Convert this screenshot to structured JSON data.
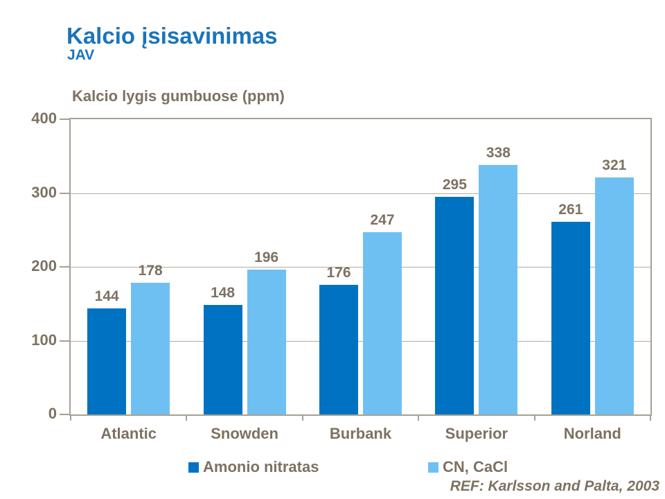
{
  "header": {
    "title": "Kalcio įsisavinimas",
    "subtitle": "JAV"
  },
  "footer": {
    "ref": "REF: Karlsson and Palta, 2003"
  },
  "colors": {
    "title_blue": "#1b74bc",
    "series1_dark_blue": "#0072c2",
    "series2_light_blue": "#6fc0f2",
    "text_brown": "#7d7162",
    "frame": "#a5a095",
    "gridline": "#b3ada2",
    "background": "#ffffff"
  },
  "chart_data": {
    "type": "bar",
    "title": "Kalcio lygis gumbuose (ppm)",
    "categories": [
      "Atlantic",
      "Snowden",
      "Burbank",
      "Superior",
      "Norland"
    ],
    "series": [
      {
        "name": "Amonio nitratas",
        "color": "#0072c2",
        "values": [
          144,
          148,
          176,
          295,
          261
        ]
      },
      {
        "name": "CN, CaCl",
        "color": "#6fc0f2",
        "values": [
          178,
          196,
          247,
          338,
          321
        ]
      }
    ],
    "xlabel": "",
    "ylabel": "",
    "ylim": [
      0,
      400
    ],
    "yticks": [
      0,
      100,
      200,
      300,
      400
    ],
    "grid": true,
    "grid_levels": [
      100,
      200,
      300
    ],
    "legend_position": "bottom",
    "value_labels": true
  }
}
